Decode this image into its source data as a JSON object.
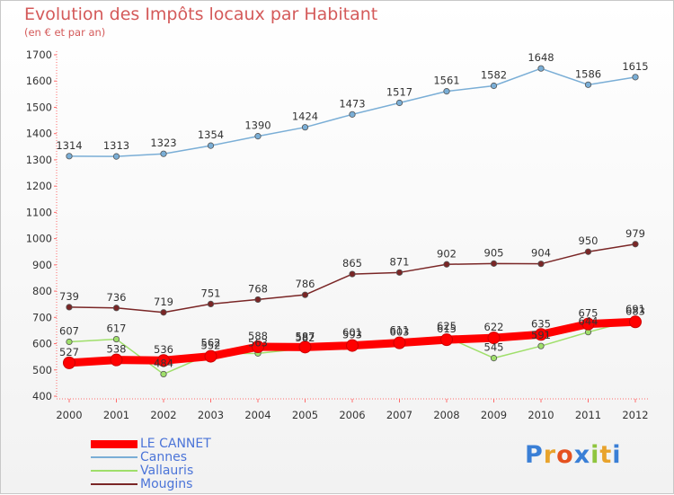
{
  "title": "Evolution des Impôts locaux par Habitant",
  "subtitle": "(en € et par an)",
  "logo": {
    "text": "Proxiti",
    "colors": [
      "#3a7fd6",
      "#e8a32c",
      "#e5511e",
      "#3a7fd6",
      "#8fc53e",
      "#e8a32c",
      "#3a7fd6"
    ]
  },
  "chart_data": {
    "type": "line",
    "categories": [
      "2000",
      "2001",
      "2002",
      "2003",
      "2004",
      "2005",
      "2006",
      "2007",
      "2008",
      "2009",
      "2010",
      "2011",
      "2012"
    ],
    "ylim": [
      400,
      1700
    ],
    "yticks": [
      400,
      500,
      600,
      700,
      800,
      900,
      1000,
      1100,
      1200,
      1300,
      1400,
      1500,
      1600,
      1700
    ],
    "grid": false,
    "legend": "bottom-left",
    "series": [
      {
        "name": "LE CANNET",
        "color": "#ff0000",
        "values": [
          527,
          538,
          536,
          552,
          588,
          587,
          593,
          603,
          615,
          622,
          635,
          675,
          683
        ]
      },
      {
        "name": "Cannes",
        "color": "#7aaed6",
        "values": [
          1314,
          1313,
          1323,
          1354,
          1390,
          1424,
          1473,
          1517,
          1561,
          1582,
          1648,
          1586,
          1615
        ]
      },
      {
        "name": "Vallauris",
        "color": "#9fdf6a",
        "values": [
          607,
          617,
          484,
          562,
          563,
          582,
          601,
          611,
          625,
          545,
          591,
          644,
          691
        ]
      },
      {
        "name": "Mougins",
        "color": "#7a2626",
        "values": [
          739,
          736,
          719,
          751,
          768,
          786,
          865,
          871,
          902,
          905,
          904,
          950,
          979
        ]
      }
    ]
  }
}
